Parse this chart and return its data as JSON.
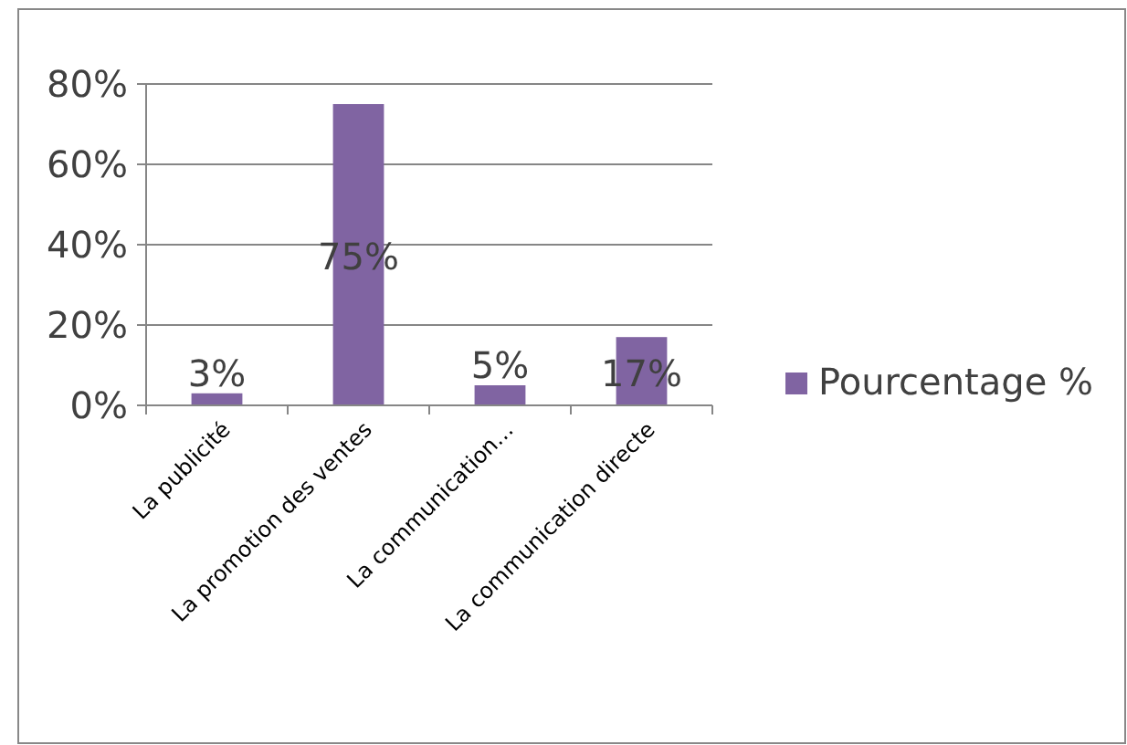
{
  "chart_data": {
    "type": "bar",
    "categories": [
      "La publicité",
      "La promotion des ventes",
      "La communication…",
      "La communication directe"
    ],
    "series": [
      {
        "name": "Pourcentage %",
        "color": "#8064a2",
        "values": [
          3,
          75,
          5,
          17
        ],
        "value_labels": [
          "3%",
          "75%",
          "5%",
          "17%"
        ]
      }
    ],
    "ylim": [
      0,
      80
    ],
    "yticks": [
      {
        "value": 0,
        "label": "0%"
      },
      {
        "value": 20,
        "label": "20%"
      },
      {
        "value": 40,
        "label": "40%"
      },
      {
        "value": 60,
        "label": "60%"
      },
      {
        "value": 80,
        "label": "80%"
      }
    ],
    "grid": "y",
    "legend": "right"
  }
}
